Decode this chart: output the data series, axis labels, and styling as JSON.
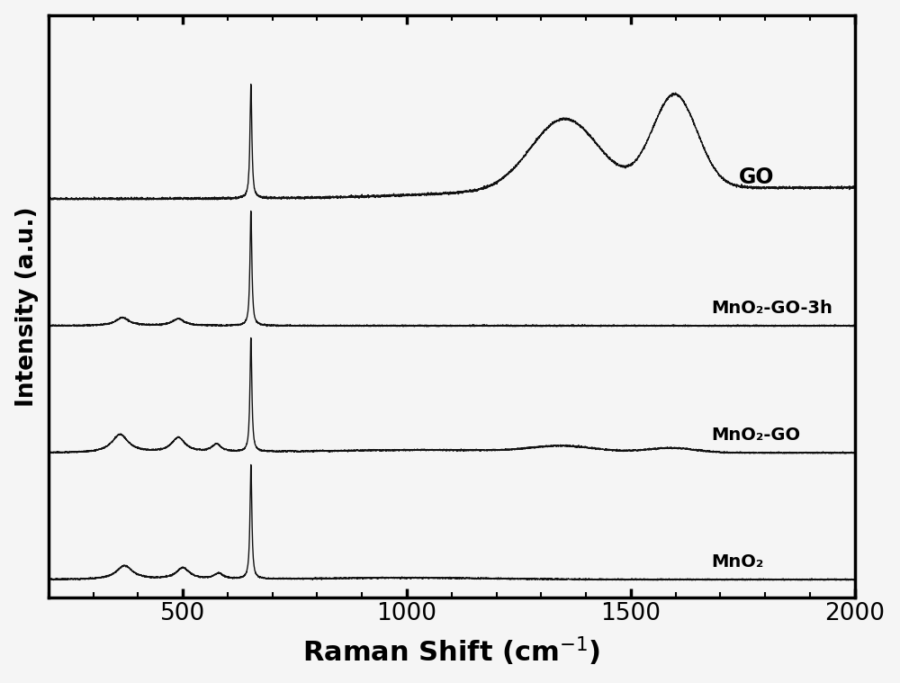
{
  "title": "",
  "xlabel": "Raman Shift (cm$^{-1}$)",
  "ylabel": "Intensity (a.u.)",
  "xlim": [
    200,
    2000
  ],
  "x_ticks": [
    500,
    1000,
    1500,
    2000
  ],
  "background_color": "#f5f5f5",
  "line_color": "#111111",
  "labels": [
    "MnO$_2$",
    "MnO$_2$-GO",
    "MnO$_2$-GO-3h",
    "GO"
  ],
  "label_texts": [
    "MnO₂",
    "MnO₂-GO",
    "MnO₂-GO-3h",
    "GO"
  ],
  "offsets": [
    0.0,
    0.22,
    0.44,
    0.66
  ],
  "scale": 0.2,
  "figsize": [
    10.0,
    7.59
  ]
}
